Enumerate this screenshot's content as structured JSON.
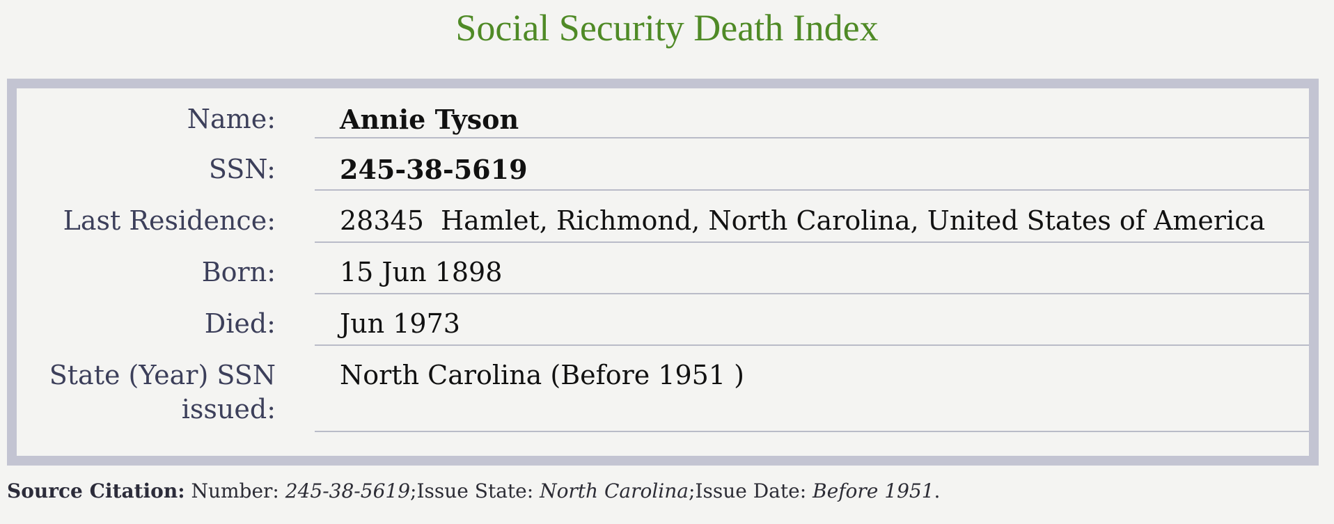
{
  "page": {
    "title": "Social Security Death Index"
  },
  "record": {
    "rows": [
      {
        "label": "Name:",
        "value": "Annie Tyson"
      },
      {
        "label": "SSN:",
        "value": "245-38-5619"
      },
      {
        "label": "Last Residence:",
        "value": "28345  Hamlet, Richmond, North Carolina, United States of America"
      },
      {
        "label": "Born:",
        "value": "15 Jun 1898"
      },
      {
        "label": "Died:",
        "value": "Jun 1973"
      },
      {
        "label_line1": "State (Year) SSN",
        "label_line2": "issued:",
        "value": "North Carolina (Before 1951 )"
      }
    ]
  },
  "citation": {
    "label": "Source Citation:",
    "number_label": " Number: ",
    "number_value": "245-38-5619",
    "state_label": ";Issue State: ",
    "state_value": "North Carolina",
    "date_label": ";Issue Date: ",
    "date_value": "Before 1951",
    "end": "."
  },
  "colors": {
    "title": "#4f8a26",
    "panel_border": "#c3c4d2",
    "label_text": "#3c3f5a",
    "background": "#f4f4f2"
  }
}
